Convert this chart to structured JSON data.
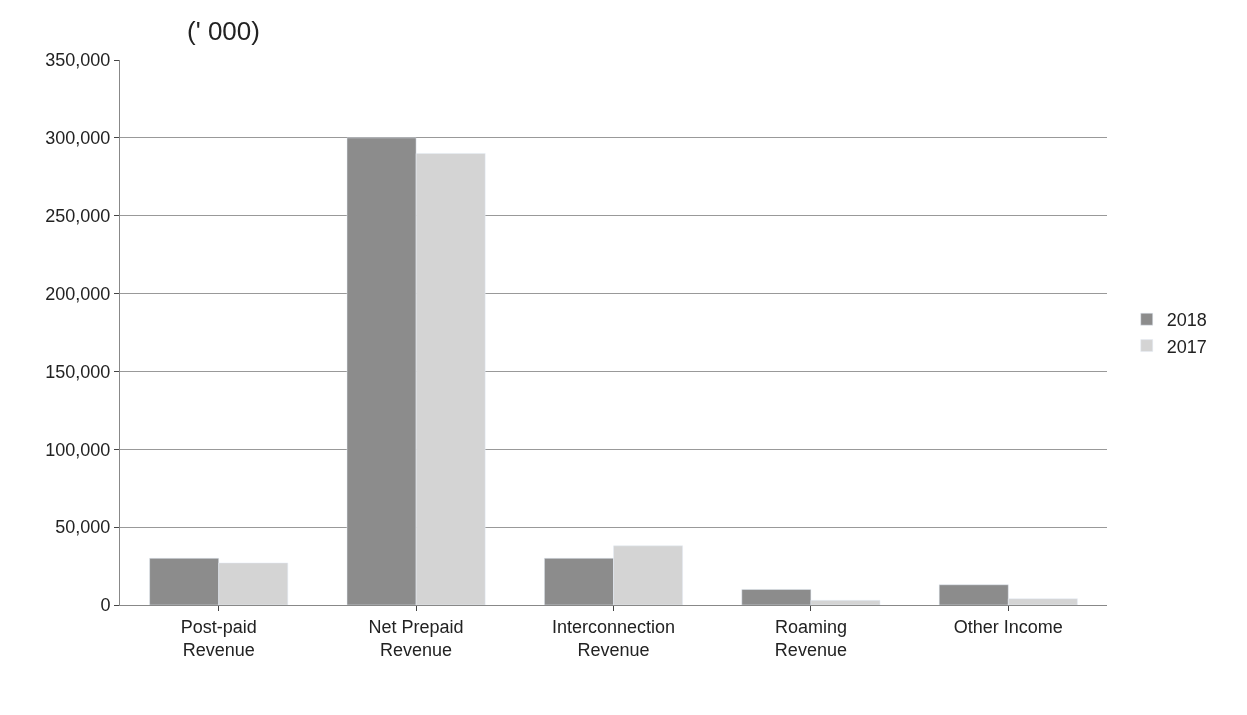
{
  "chart_data": {
    "type": "bar",
    "title": "(' 000)",
    "categories": [
      "Post-paid Revenue",
      "Net Prepaid Revenue",
      "Interconnection Revenue",
      "Roaming Revenue",
      "Other Income"
    ],
    "series": [
      {
        "name": "2018",
        "color": "#8c8c8c",
        "values": [
          30000,
          300000,
          30000,
          10000,
          13000
        ]
      },
      {
        "name": "2017",
        "color": "#d4d4d4",
        "values": [
          27000,
          290000,
          38000,
          3000,
          4000
        ]
      }
    ],
    "ylim": [
      0,
      350000
    ],
    "yticks": [
      {
        "value": 0,
        "label": "0"
      },
      {
        "value": 50000,
        "label": "50,000"
      },
      {
        "value": 100000,
        "label": "100,000"
      },
      {
        "value": 150000,
        "label": "150,000"
      },
      {
        "value": 200000,
        "label": "200,000"
      },
      {
        "value": 250000,
        "label": "250,000"
      },
      {
        "value": 300000,
        "label": "300,000"
      },
      {
        "value": 350000,
        "label": "350,000"
      }
    ],
    "grid": "y",
    "legend": "right"
  }
}
